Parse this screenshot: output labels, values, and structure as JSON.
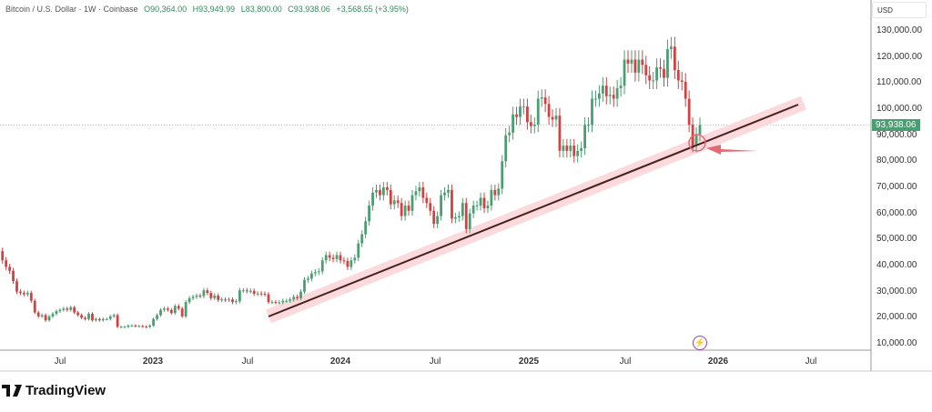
{
  "header": {
    "symbol": "Bitcoin / U.S. Dollar · 1W · Coinbase",
    "open": "O90,364.00",
    "high": "H93,949.99",
    "low": "L83,800.00",
    "close": "C93,938.06",
    "change": "+3,568.55 (+3.95%)"
  },
  "currency": "USD",
  "current_price": "93,938.06",
  "brand": "TradingView",
  "colors": {
    "up": "#4b9e72",
    "down": "#d14242",
    "trendline": "#4a1f1f",
    "band": "#fbd9dc",
    "annotation": "#e36b75"
  },
  "chart_data": {
    "type": "candlestick",
    "interval": "1W",
    "y_ticks": [
      "130,000.00",
      "120,000.00",
      "110,000.00",
      "100,000.00",
      "90,000.00",
      "80,000.00",
      "70,000.00",
      "60,000.00",
      "50,000.00",
      "40,000.00",
      "30,000.00",
      "20,000.00",
      "10,000.00"
    ],
    "y_tick_values": [
      130000,
      120000,
      110000,
      100000,
      90000,
      80000,
      70000,
      60000,
      50000,
      40000,
      30000,
      20000,
      10000
    ],
    "x_ticks": [
      "Jul",
      "2023",
      "Jul",
      "2024",
      "Jul",
      "2025",
      "Jul",
      "2026",
      "Jul"
    ],
    "first_open": 47000,
    "closes": [
      46000,
      45500,
      42000,
      39500,
      38000,
      34000,
      30000,
      29500,
      29000,
      29500,
      26500,
      22000,
      20500,
      21000,
      19000,
      20500,
      21500,
      22500,
      23000,
      23500,
      23000,
      24000,
      22000,
      21000,
      20000,
      19500,
      21500,
      19000,
      19500,
      19000,
      19500,
      19500,
      20500,
      21000,
      16500,
      16500,
      16500,
      17000,
      17000,
      16800,
      16800,
      16600,
      16500,
      17000,
      19500,
      21000,
      23000,
      23500,
      23000,
      21800,
      24500,
      23500,
      20500,
      26000,
      27500,
      28000,
      28500,
      28300,
      30500,
      29500,
      27500,
      28500,
      26800,
      27000,
      26800,
      27000,
      26000,
      26300,
      30500,
      30500,
      30200,
      30300,
      29200,
      29300,
      29200,
      29000,
      26000,
      26000,
      25900,
      25900,
      26500,
      26500,
      27000,
      28000,
      27500,
      30000,
      34500,
      35000,
      37000,
      37500,
      37800,
      42000,
      44000,
      43000,
      42500,
      44000,
      42000,
      41800,
      39500,
      42000,
      43000,
      48500,
      52000,
      57000,
      63000,
      68000,
      69000,
      67000,
      70000,
      69000,
      63500,
      65000,
      64000,
      59000,
      63000,
      61000,
      67000,
      68500,
      70000,
      66000,
      64000,
      61000,
      56000,
      59000,
      67000,
      68000,
      69000,
      58000,
      58500,
      59000,
      64000,
      54000,
      60000,
      63000,
      63000,
      66000,
      62000,
      63000,
      69000,
      67000,
      69500,
      80000,
      90000,
      91000,
      98000,
      97000,
      101000,
      101000,
      95000,
      93500,
      94000,
      104000,
      104500,
      102000,
      97000,
      96000,
      97500,
      84000,
      86000,
      84000,
      86000,
      82000,
      84000,
      85000,
      94000,
      94000,
      104000,
      104000,
      106000,
      109000,
      105000,
      105500,
      104000,
      108000,
      109000,
      119000,
      117500,
      119000,
      114000,
      119000,
      117000,
      113000,
      111000,
      111000,
      116000,
      115500,
      112000,
      123000,
      124000,
      115000,
      111000,
      110500,
      104000,
      94000,
      86000,
      90364,
      93938.06
    ],
    "trendline": {
      "from": {
        "date": "2023-08",
        "price": 21000
      },
      "to": {
        "date": "2026-06",
        "price": 102000
      }
    },
    "annotation": "circle and arrow at trendline touch near 87,000"
  }
}
